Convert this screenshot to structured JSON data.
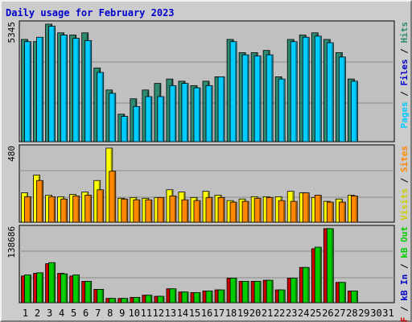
{
  "title": "Daily usage for February 2023",
  "colors": {
    "hits": "#2e8b72",
    "files": "#00ccff",
    "visits": "#ffff00",
    "sites": "#ff8800",
    "kb_in": "#00cc00",
    "kb_out": "#cc0000",
    "weekend_day": "#007f5f",
    "title": "#0000cc"
  },
  "chart_data": [
    {
      "type": "bar",
      "name": "Pages/Files/Hits",
      "categories": [
        "1",
        "2",
        "3",
        "4",
        "5",
        "6",
        "7",
        "8",
        "9",
        "10",
        "11",
        "12",
        "13",
        "14",
        "15",
        "16",
        "17",
        "18",
        "19",
        "20",
        "21",
        "22",
        "23",
        "24",
        "25",
        "26",
        "27",
        "28",
        "29",
        "30",
        "31"
      ],
      "ymax_label": "5345",
      "ylim": [
        0,
        5345
      ],
      "side_label": [
        {
          "text": "Pages",
          "color": "#00ccff"
        },
        {
          "text": " / ",
          "color": "#000000"
        },
        {
          "text": "Files",
          "color": "#0000cc"
        },
        {
          "text": " / ",
          "color": "#000000"
        },
        {
          "text": "Hits",
          "color": "#2e8b72"
        }
      ],
      "series": [
        {
          "name": "Hits",
          "color": "#2e8b72",
          "values": [
            4650,
            4550,
            5345,
            4950,
            4850,
            4950,
            3350,
            2350,
            1250,
            1950,
            2350,
            2650,
            2850,
            2750,
            2550,
            2750,
            2950,
            4650,
            4050,
            4050,
            4150,
            2950,
            4650,
            4850,
            4950,
            4650,
            4050,
            2850,
            null,
            null,
            null
          ]
        },
        {
          "name": "Files",
          "color": "#00ccff",
          "values": [
            4550,
            4750,
            5250,
            4850,
            4700,
            4600,
            3150,
            2200,
            1150,
            1600,
            2050,
            2050,
            2550,
            2650,
            2450,
            2550,
            2950,
            4550,
            3950,
            3900,
            3950,
            2850,
            4550,
            4750,
            4800,
            4500,
            3850,
            2750,
            null,
            null,
            null
          ]
        }
      ]
    },
    {
      "type": "bar",
      "name": "Visits/Sites",
      "categories": [
        "1",
        "2",
        "3",
        "4",
        "5",
        "6",
        "7",
        "8",
        "9",
        "10",
        "11",
        "12",
        "13",
        "14",
        "15",
        "16",
        "17",
        "18",
        "19",
        "20",
        "21",
        "22",
        "23",
        "24",
        "25",
        "26",
        "27",
        "28",
        "29",
        "30",
        "31"
      ],
      "ymax_label": "480",
      "ylim": [
        0,
        480
      ],
      "side_label": [
        {
          "text": "Visits",
          "color": "#cccc00"
        },
        {
          "text": " / ",
          "color": "#000000"
        },
        {
          "text": "Sites",
          "color": "#ff8800"
        }
      ],
      "series": [
        {
          "name": "Visits",
          "color": "#ffff00",
          "values": [
            190,
            305,
            175,
            165,
            180,
            195,
            270,
            480,
            155,
            160,
            155,
            160,
            210,
            195,
            160,
            200,
            175,
            140,
            150,
            165,
            165,
            165,
            200,
            190,
            160,
            135,
            150,
            175,
            null,
            null,
            null
          ]
        },
        {
          "name": "Sites",
          "color": "#ff8800",
          "values": [
            165,
            270,
            165,
            150,
            170,
            175,
            210,
            330,
            150,
            145,
            145,
            160,
            170,
            145,
            140,
            160,
            160,
            130,
            135,
            155,
            160,
            140,
            135,
            190,
            175,
            130,
            130,
            170,
            null,
            null,
            null
          ]
        }
      ]
    },
    {
      "type": "bar",
      "name": "KBytes",
      "categories": [
        "1",
        "2",
        "3",
        "4",
        "5",
        "6",
        "7",
        "8",
        "9",
        "10",
        "11",
        "12",
        "13",
        "14",
        "15",
        "16",
        "17",
        "18",
        "19",
        "20",
        "21",
        "22",
        "23",
        "24",
        "25",
        "26",
        "27",
        "28",
        "29",
        "30",
        "31"
      ],
      "ymax_label": "138686",
      "ylim": [
        0,
        138686
      ],
      "side_label": [
        {
          "text": "kB F",
          "color": "#cc0000"
        },
        {
          "text": " / ",
          "color": "#000000"
        },
        {
          "text": "kB In",
          "color": "#0000cc"
        },
        {
          "text": " / ",
          "color": "#000000"
        },
        {
          "text": "kB Out",
          "color": "#00cc00"
        }
      ],
      "series": [
        {
          "name": "kB F",
          "color": "#cc0000",
          "values": [
            50000,
            55000,
            73000,
            55000,
            50000,
            40000,
            25000,
            8000,
            8000,
            10000,
            14000,
            12000,
            26000,
            20000,
            19000,
            22000,
            24000,
            46000,
            40000,
            40000,
            42000,
            24000,
            46000,
            66000,
            101000,
            138686,
            38000,
            22000,
            null,
            null,
            null
          ]
        },
        {
          "name": "kB Out",
          "color": "#00cc00",
          "values": [
            52000,
            56000,
            75000,
            54000,
            52000,
            40000,
            25000,
            8000,
            8000,
            10000,
            14000,
            12000,
            26000,
            20000,
            19000,
            22000,
            24000,
            46000,
            40000,
            40000,
            42000,
            24000,
            46000,
            66000,
            104000,
            138686,
            38000,
            22000,
            null,
            null,
            null
          ]
        }
      ]
    }
  ]
}
